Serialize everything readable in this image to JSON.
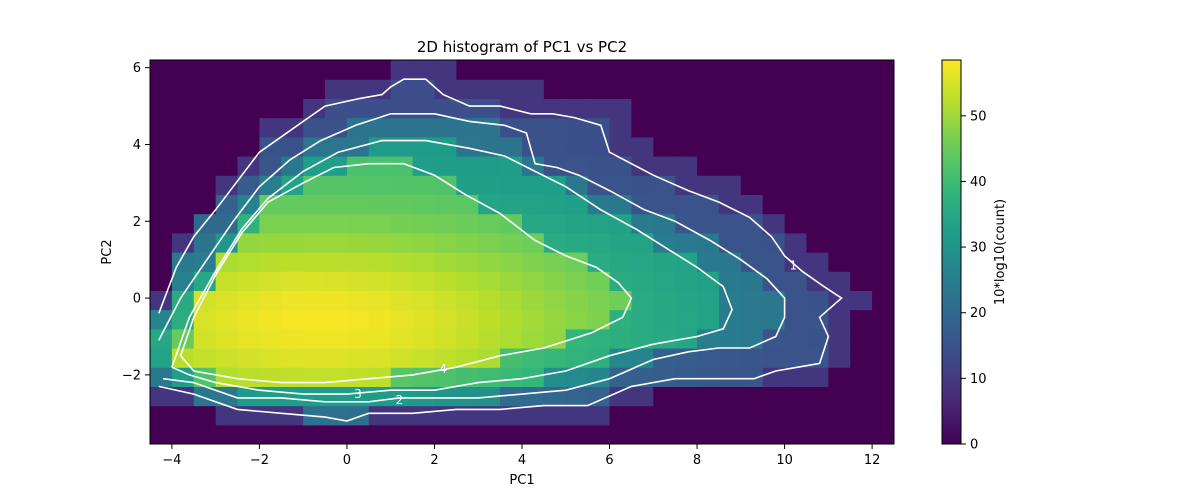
{
  "chart_data": {
    "type": "heatmap",
    "title": "2D histogram of PC1 vs PC2",
    "xlabel": "PC1",
    "ylabel": "PC2",
    "xlim": [
      -4.5,
      12.5
    ],
    "ylim": [
      -3.8,
      6.2
    ],
    "xticks": [
      -4,
      -2,
      0,
      2,
      4,
      6,
      8,
      10,
      12
    ],
    "yticks": [
      -2,
      0,
      2,
      4,
      6
    ],
    "colormap": "viridis",
    "colorbar": {
      "label": "10*log10(count)",
      "range": [
        0,
        58.5
      ],
      "ticks": [
        0,
        10,
        20,
        30,
        40,
        50
      ]
    },
    "bins": {
      "x_start": -4.5,
      "x_end": 12.5,
      "nx": 34,
      "y_start": -3.8,
      "y_end": 6.2,
      "ny": 20
    },
    "density_model": {
      "peak_value": 58.5,
      "peak": [
        -0.6,
        -0.6
      ],
      "note_free": true
    },
    "contours": [
      {
        "label": "1",
        "points": [
          [
            -4.3,
            -0.4
          ],
          [
            -3.9,
            0.8
          ],
          [
            -3.5,
            1.6
          ],
          [
            -3.0,
            2.3
          ],
          [
            -2.4,
            3.2
          ],
          [
            -2.0,
            3.8
          ],
          [
            -1.5,
            4.2
          ],
          [
            -1.0,
            4.6
          ],
          [
            -0.5,
            5.0
          ],
          [
            0.3,
            5.2
          ],
          [
            0.8,
            5.3
          ],
          [
            1.0,
            5.5
          ],
          [
            1.3,
            5.7
          ],
          [
            1.8,
            5.7
          ],
          [
            2.2,
            5.3
          ],
          [
            2.8,
            5.0
          ],
          [
            3.5,
            5.0
          ],
          [
            4.2,
            4.8
          ],
          [
            4.7,
            4.8
          ],
          [
            5.2,
            4.7
          ],
          [
            5.8,
            4.5
          ],
          [
            6.0,
            3.8
          ],
          [
            6.5,
            3.5
          ],
          [
            7.0,
            3.2
          ],
          [
            7.8,
            2.8
          ],
          [
            8.5,
            2.5
          ],
          [
            9.2,
            2.1
          ],
          [
            9.7,
            1.6
          ],
          [
            10.0,
            1.1
          ],
          [
            10.4,
            0.7
          ],
          [
            10.9,
            0.3
          ],
          [
            11.3,
            0.0
          ],
          [
            10.8,
            -0.5
          ],
          [
            11.0,
            -1.0
          ],
          [
            10.8,
            -1.7
          ],
          [
            10.3,
            -1.8
          ],
          [
            9.8,
            -1.9
          ],
          [
            9.3,
            -2.1
          ],
          [
            8.5,
            -2.1
          ],
          [
            7.5,
            -2.1
          ],
          [
            6.5,
            -2.3
          ],
          [
            5.5,
            -2.8
          ],
          [
            4.5,
            -2.8
          ],
          [
            3.5,
            -2.9
          ],
          [
            2.5,
            -2.9
          ],
          [
            1.5,
            -3.0
          ],
          [
            0.5,
            -3.0
          ],
          [
            0,
            -3.2
          ],
          [
            -0.5,
            -3.1
          ],
          [
            -1.5,
            -3.0
          ],
          [
            -2.5,
            -2.9
          ],
          [
            -3.5,
            -2.5
          ],
          [
            -4.3,
            -2.3
          ]
        ]
      },
      {
        "label": "2",
        "points": [
          [
            -4.3,
            -1.1
          ],
          [
            -3.8,
            0.0
          ],
          [
            -3.2,
            1.0
          ],
          [
            -2.6,
            2.0
          ],
          [
            -2.0,
            2.9
          ],
          [
            -1.3,
            3.6
          ],
          [
            -0.6,
            4.1
          ],
          [
            0.2,
            4.5
          ],
          [
            1.0,
            4.8
          ],
          [
            2.0,
            4.8
          ],
          [
            2.8,
            4.6
          ],
          [
            3.6,
            4.5
          ],
          [
            4.1,
            4.3
          ],
          [
            4.3,
            3.5
          ],
          [
            4.8,
            3.4
          ],
          [
            5.3,
            3.2
          ],
          [
            6.0,
            2.8
          ],
          [
            6.8,
            2.3
          ],
          [
            7.5,
            2.0
          ],
          [
            8.3,
            1.5
          ],
          [
            9.0,
            1.0
          ],
          [
            9.6,
            0.5
          ],
          [
            10.0,
            0.0
          ],
          [
            10.0,
            -0.5
          ],
          [
            9.8,
            -1.0
          ],
          [
            9.2,
            -1.3
          ],
          [
            8.5,
            -1.3
          ],
          [
            7.8,
            -1.4
          ],
          [
            7.0,
            -1.6
          ],
          [
            6.0,
            -2.1
          ],
          [
            5.0,
            -2.4
          ],
          [
            4.0,
            -2.5
          ],
          [
            3.0,
            -2.6
          ],
          [
            2.0,
            -2.6
          ],
          [
            1.2,
            -2.6
          ],
          [
            0.5,
            -2.7
          ],
          [
            -0.5,
            -2.7
          ],
          [
            -1.5,
            -2.6
          ],
          [
            -2.5,
            -2.6
          ],
          [
            -3.5,
            -2.2
          ],
          [
            -4.2,
            -2.1
          ]
        ]
      },
      {
        "label": "3",
        "points": [
          [
            -4.0,
            -1.8
          ],
          [
            -3.6,
            -0.5
          ],
          [
            -3.0,
            0.7
          ],
          [
            -2.4,
            1.8
          ],
          [
            -1.8,
            2.6
          ],
          [
            -1.0,
            3.3
          ],
          [
            -0.2,
            3.8
          ],
          [
            0.8,
            4.1
          ],
          [
            1.8,
            4.1
          ],
          [
            2.8,
            3.9
          ],
          [
            3.6,
            3.7
          ],
          [
            4.3,
            3.3
          ],
          [
            5.0,
            2.9
          ],
          [
            5.8,
            2.3
          ],
          [
            6.6,
            1.8
          ],
          [
            7.3,
            1.3
          ],
          [
            8.0,
            0.8
          ],
          [
            8.6,
            0.3
          ],
          [
            8.8,
            -0.3
          ],
          [
            8.6,
            -0.8
          ],
          [
            8.0,
            -1.0
          ],
          [
            7.0,
            -1.2
          ],
          [
            6.0,
            -1.5
          ],
          [
            5.0,
            -1.9
          ],
          [
            4.0,
            -2.1
          ],
          [
            3.0,
            -2.2
          ],
          [
            2.0,
            -2.4
          ],
          [
            1.0,
            -2.4
          ],
          [
            0.0,
            -2.5
          ],
          [
            -1.0,
            -2.5
          ],
          [
            -2.0,
            -2.4
          ],
          [
            -3.0,
            -2.2
          ],
          [
            -3.6,
            -2.0
          ],
          [
            -4.0,
            -1.8
          ]
        ]
      },
      {
        "label": "4",
        "points": [
          [
            -3.8,
            -1.5
          ],
          [
            -3.5,
            -0.5
          ],
          [
            -3.0,
            0.6
          ],
          [
            -2.4,
            1.7
          ],
          [
            -1.8,
            2.5
          ],
          [
            -1.0,
            3.0
          ],
          [
            -0.3,
            3.4
          ],
          [
            0.5,
            3.5
          ],
          [
            1.3,
            3.5
          ],
          [
            2.0,
            3.2
          ],
          [
            2.7,
            2.7
          ],
          [
            3.5,
            2.2
          ],
          [
            4.3,
            1.5
          ],
          [
            5.0,
            1.1
          ],
          [
            5.7,
            0.8
          ],
          [
            6.2,
            0.4
          ],
          [
            6.5,
            0.0
          ],
          [
            6.3,
            -0.5
          ],
          [
            5.6,
            -0.9
          ],
          [
            4.5,
            -1.3
          ],
          [
            3.5,
            -1.5
          ],
          [
            2.5,
            -1.8
          ],
          [
            1.5,
            -2.0
          ],
          [
            0.5,
            -2.1
          ],
          [
            -0.5,
            -2.2
          ],
          [
            -1.5,
            -2.2
          ],
          [
            -2.5,
            -2.1
          ],
          [
            -3.5,
            -1.9
          ],
          [
            -3.8,
            -1.5
          ]
        ]
      }
    ]
  }
}
